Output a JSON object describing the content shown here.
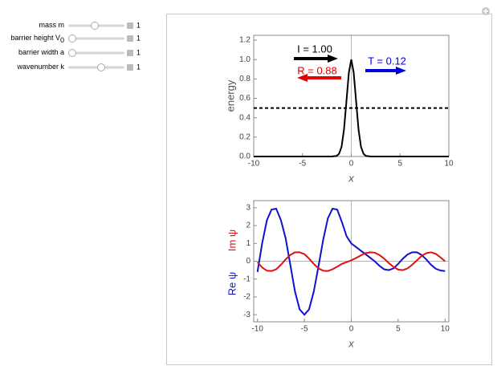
{
  "controls": [
    {
      "label": "mass m",
      "value": 1
    },
    {
      "label": "barrier height V",
      "sub": "0",
      "value": 1
    },
    {
      "label": "barrier width a",
      "value": 1
    },
    {
      "label": "wavenumber k",
      "value": 1
    }
  ],
  "chart_data": [
    {
      "type": "line",
      "xlabel": "x",
      "ylabel": "energy",
      "xlim": [
        -10,
        10
      ],
      "ylim": [
        0,
        1.25
      ],
      "xticks": [
        -10,
        -5,
        0,
        5,
        10
      ],
      "yticks": [
        {
          "value": 0,
          "label": "0.0"
        },
        0.2,
        0.4,
        0.6,
        0.8,
        {
          "value": 1,
          "label": "1.0"
        },
        1.2
      ],
      "zero_lines": [
        "x"
      ],
      "series": [
        {
          "color": "#000000",
          "x": [
            -10,
            -3,
            -2,
            -1.5,
            -1.25,
            -1,
            -0.75,
            -0.5,
            -0.25,
            0,
            0.25,
            0.5,
            0.75,
            1,
            1.25,
            1.5,
            2,
            3,
            10
          ],
          "values": [
            0,
            0,
            0.0001,
            0.006,
            0.028,
            0.1,
            0.274,
            0.563,
            0.866,
            1,
            0.866,
            0.563,
            0.274,
            0.1,
            0.028,
            0.006,
            0.0001,
            0,
            0
          ]
        },
        {
          "color": "#000000",
          "dash": true,
          "x": [
            -10,
            10
          ],
          "values": [
            0.5,
            0.5
          ]
        }
      ],
      "annotations": [
        {
          "text": "I = 1.00",
          "color": "#000000"
        },
        {
          "text": "R = 0.88",
          "color": "#e00000"
        },
        {
          "text": "T = 0.12",
          "color": "#0000e0"
        }
      ]
    },
    {
      "type": "line",
      "xlabel": "x",
      "xlim": [
        -10.4,
        10.4
      ],
      "ylim": [
        -3.4,
        3.4
      ],
      "xticks": [
        -10,
        -5,
        0,
        5,
        10
      ],
      "yticks": [
        -3,
        -2,
        -1,
        0,
        1,
        2,
        3
      ],
      "zero_lines": [
        "x",
        "y"
      ],
      "series": [
        {
          "name": "Re ψ",
          "color": "#1010d0",
          "x": [
            -10,
            -9.5,
            -9,
            -8.5,
            -8,
            -7.5,
            -7,
            -6.5,
            -6,
            -5.5,
            -5,
            -4.5,
            -4,
            -3.5,
            -3,
            -2.5,
            -2,
            -1.5,
            -1,
            -0.5,
            0,
            0.5,
            1,
            1.5,
            2,
            2.5,
            3,
            3.5,
            4,
            4.5,
            5,
            5.5,
            6,
            6.5,
            7,
            7.5,
            8,
            8.5,
            9,
            9.5,
            10
          ],
          "values": [
            -0.6,
            1.0,
            2.3,
            2.9,
            2.95,
            2.3,
            1.3,
            -0.2,
            -1.7,
            -2.7,
            -3.0,
            -2.7,
            -1.7,
            -0.3,
            1.2,
            2.4,
            2.95,
            2.9,
            2.2,
            1.4,
            1.0,
            0.8,
            0.6,
            0.4,
            0.2,
            0.0,
            -0.25,
            -0.45,
            -0.5,
            -0.4,
            -0.15,
            0.15,
            0.38,
            0.5,
            0.5,
            0.35,
            0.1,
            -0.2,
            -0.42,
            -0.52,
            -0.55
          ]
        },
        {
          "name": "Im ψ",
          "color": "#e01010",
          "x": [
            -10,
            -9.5,
            -9,
            -8.5,
            -8,
            -7.5,
            -7,
            -6.5,
            -6,
            -5.5,
            -5,
            -4.5,
            -4,
            -3.5,
            -3,
            -2.5,
            -2,
            -1.5,
            -1,
            -0.5,
            0,
            0.5,
            1,
            1.5,
            2,
            2.5,
            3,
            3.5,
            4,
            4.5,
            5,
            5.5,
            6,
            6.5,
            7,
            7.5,
            8,
            8.5,
            9,
            9.5,
            10
          ],
          "values": [
            -0.05,
            -0.35,
            -0.53,
            -0.55,
            -0.45,
            -0.2,
            0.1,
            0.35,
            0.5,
            0.5,
            0.4,
            0.15,
            -0.15,
            -0.4,
            -0.53,
            -0.55,
            -0.45,
            -0.3,
            -0.15,
            -0.05,
            0.05,
            0.18,
            0.32,
            0.45,
            0.5,
            0.48,
            0.35,
            0.15,
            -0.1,
            -0.32,
            -0.47,
            -0.5,
            -0.4,
            -0.2,
            0.05,
            0.3,
            0.45,
            0.5,
            0.42,
            0.22,
            0.0
          ]
        }
      ]
    }
  ]
}
